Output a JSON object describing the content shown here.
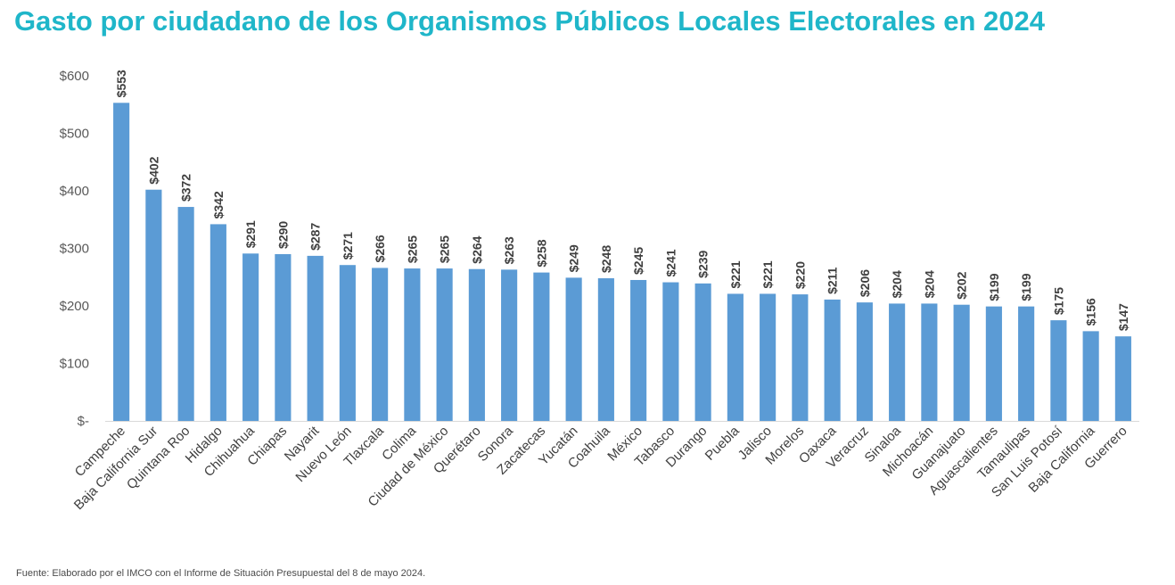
{
  "chart_data": {
    "type": "bar",
    "title": "Gasto por ciudadano de los Organismos Públicos Locales Electorales en 2024",
    "xlabel": "",
    "ylabel": "",
    "ylim": [
      0,
      600
    ],
    "grid": false,
    "categories": [
      "Campeche",
      "Baja California Sur",
      "Quintana Roo",
      "Hidalgo",
      "Chihuahua",
      "Chiapas",
      "Nayarit",
      "Nuevo León",
      "Tlaxcala",
      "Colima",
      "Ciudad de México",
      "Querétaro",
      "Sonora",
      "Zacatecas",
      "Yucatán",
      "Coahuila",
      "México",
      "Tabasco",
      "Durango",
      "Puebla",
      "Jalisco",
      "Morelos",
      "Oaxaca",
      "Veracruz",
      "Sinaloa",
      "Michoacán",
      "Guanajuato",
      "Aguascalientes",
      "Tamaulipas",
      "San Luis Potosí",
      "Baja California",
      "Guerrero"
    ],
    "values": [
      553,
      402,
      372,
      342,
      291,
      290,
      287,
      271,
      266,
      265,
      265,
      264,
      263,
      258,
      249,
      248,
      245,
      241,
      239,
      221,
      221,
      220,
      211,
      206,
      204,
      204,
      202,
      199,
      199,
      175,
      156,
      147
    ],
    "data_labels": [
      "$553",
      "$402",
      "$372",
      "$342",
      "$291",
      "$290",
      "$287",
      "$271",
      "$266",
      "$265",
      "$265",
      "$264",
      "$263",
      "$258",
      "$249",
      "$248",
      "$245",
      "$241",
      "$239",
      "$221",
      "$221",
      "$220",
      "$211",
      "$206",
      "$204",
      "$204",
      "$202",
      "$199",
      "$199",
      "$175",
      "$156",
      "$147"
    ],
    "y_ticks": [
      {
        "value": 0,
        "label": "$-"
      },
      {
        "value": 100,
        "label": "$100"
      },
      {
        "value": 200,
        "label": "$200"
      },
      {
        "value": 300,
        "label": "$300"
      },
      {
        "value": 400,
        "label": "$400"
      },
      {
        "value": 500,
        "label": "$500"
      },
      {
        "value": 600,
        "label": "$600"
      }
    ],
    "bar_color": "#5b9bd5"
  },
  "footer": {
    "source": "Fuente: Elaborado por el IMCO con el Informe de Situación Presupuestal del 8 de mayo 2024."
  }
}
